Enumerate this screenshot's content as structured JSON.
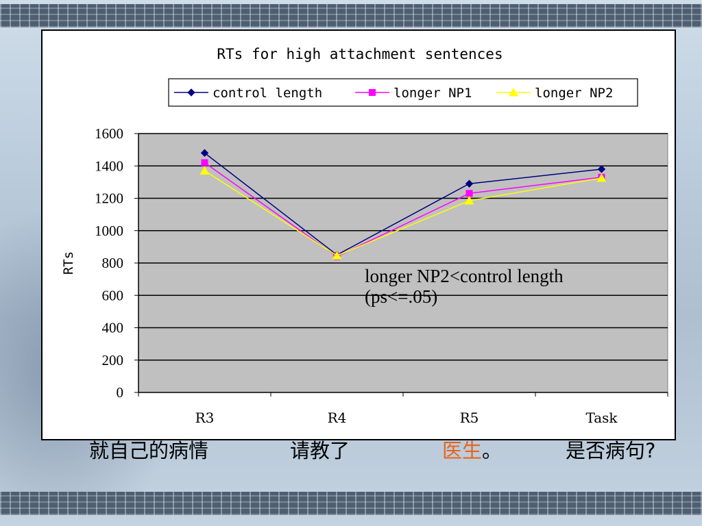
{
  "chart_data": {
    "type": "line",
    "title": "RTs for high attachment sentences",
    "ylabel": "RTs",
    "xlabel": "",
    "categories": [
      "R3",
      "R4",
      "R5",
      "Task"
    ],
    "ylim": [
      0,
      1600
    ],
    "yticks": [
      0,
      200,
      400,
      600,
      800,
      1000,
      1200,
      1400,
      1600
    ],
    "grid": true,
    "legend_position": "top",
    "series": [
      {
        "name": "control length",
        "values": [
          1480,
          850,
          1290,
          1380
        ],
        "color": "#000080",
        "marker": "diamond"
      },
      {
        "name": "longer NP1",
        "values": [
          1420,
          840,
          1230,
          1330
        ],
        "color": "#ff00ff",
        "marker": "square"
      },
      {
        "name": "longer NP2",
        "values": [
          1370,
          845,
          1185,
          1325
        ],
        "color": "#ffff00",
        "marker": "triangle"
      }
    ],
    "annotation": [
      "longer NP2<control length",
      "(ps<=.05)"
    ]
  },
  "sentence": {
    "part1": "就自己的病情",
    "part2": "请教了",
    "part3_highlight": "医生",
    "part3_end": "。",
    "part4": "是否病句?"
  },
  "colors": {
    "plot_background": "#c0c0c0",
    "highlight_text": "#e8641b"
  }
}
